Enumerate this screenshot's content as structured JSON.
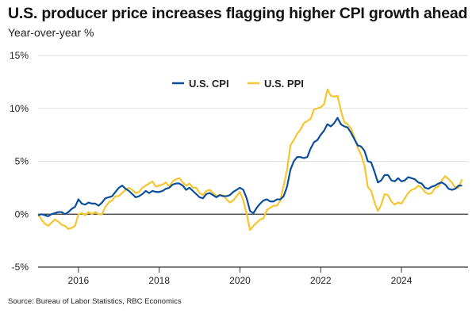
{
  "header": {
    "title": "U.S. producer price increases flagging higher CPI growth ahead",
    "subtitle": "Year-over-year %"
  },
  "footer": {
    "source": "Source: Bureau of Labor Statistics, RBC Economics"
  },
  "chart_data": {
    "type": "line",
    "title": "U.S. producer price increases flagging higher CPI growth ahead",
    "subtitle": "Year-over-year %",
    "xlabel": "",
    "ylabel": "Year-over-year %",
    "x_start": "2015-01",
    "x_frequency": "monthly",
    "xlim": [
      2015.0,
      2025.65
    ],
    "ylim": [
      -5,
      15
    ],
    "y_ticks": [
      -5,
      0,
      5,
      10,
      15
    ],
    "y_tick_labels": [
      "-5%",
      "0%",
      "5%",
      "10%",
      "15%"
    ],
    "x_ticks": [
      2016,
      2018,
      2020,
      2022,
      2024
    ],
    "x_tick_labels": [
      "2016",
      "2018",
      "2020",
      "2022",
      "2024"
    ],
    "grid": true,
    "legend_position": "top-center",
    "colors": {
      "cpi": "#0b4f9c",
      "ppi": "#f7c531",
      "grid": "#e2e2e2",
      "zero": "#333333"
    },
    "series": [
      {
        "name": "U.S. CPI",
        "key": "cpi",
        "values": [
          -0.1,
          0.0,
          -0.1,
          -0.2,
          0.0,
          0.1,
          0.2,
          0.2,
          0.0,
          0.2,
          0.5,
          0.7,
          1.4,
          1.0,
          0.9,
          1.1,
          1.0,
          1.0,
          0.8,
          1.1,
          1.5,
          1.6,
          1.7,
          2.1,
          2.5,
          2.7,
          2.4,
          2.2,
          1.9,
          1.6,
          1.7,
          1.9,
          2.2,
          2.0,
          2.2,
          2.1,
          2.1,
          2.2,
          2.4,
          2.5,
          2.8,
          2.9,
          2.9,
          2.7,
          2.3,
          2.5,
          2.2,
          1.9,
          1.6,
          1.5,
          1.9,
          2.0,
          1.8,
          1.6,
          1.8,
          1.7,
          1.7,
          1.8,
          2.1,
          2.3,
          2.5,
          2.3,
          1.5,
          0.3,
          0.1,
          0.6,
          1.0,
          1.3,
          1.4,
          1.2,
          1.2,
          1.4,
          1.4,
          1.7,
          2.6,
          4.2,
          5.0,
          5.4,
          5.4,
          5.3,
          5.4,
          6.2,
          6.8,
          7.0,
          7.5,
          7.9,
          8.5,
          8.3,
          8.6,
          9.1,
          8.5,
          8.3,
          8.2,
          7.7,
          7.1,
          6.5,
          6.4,
          6.0,
          5.0,
          4.9,
          4.0,
          3.0,
          3.2,
          3.7,
          3.7,
          3.2,
          3.1,
          3.4,
          3.1,
          3.2,
          3.5,
          3.4,
          3.3,
          3.0,
          2.9,
          2.5,
          2.4,
          2.6,
          2.7,
          2.9,
          3.0,
          2.8,
          2.4,
          2.3,
          2.4,
          2.7,
          2.7
        ]
      },
      {
        "name": "U.S. PPI",
        "key": "ppi",
        "values": [
          0.0,
          -0.5,
          -0.9,
          -1.1,
          -0.8,
          -0.5,
          -0.7,
          -1.0,
          -1.1,
          -1.4,
          -1.3,
          -1.1,
          0.0,
          0.1,
          -0.1,
          0.2,
          0.0,
          0.2,
          0.0,
          0.0,
          0.7,
          1.1,
          1.3,
          1.7,
          1.7,
          2.0,
          2.3,
          2.5,
          2.3,
          2.0,
          2.1,
          2.5,
          2.7,
          2.9,
          3.1,
          2.6,
          2.7,
          2.8,
          3.0,
          2.6,
          3.1,
          3.3,
          3.4,
          3.0,
          2.7,
          2.9,
          2.5,
          2.5,
          2.0,
          1.8,
          2.2,
          2.3,
          2.0,
          1.7,
          1.8,
          1.8,
          1.4,
          1.1,
          1.3,
          1.7,
          2.1,
          1.3,
          0.0,
          -1.5,
          -1.1,
          -0.8,
          -0.5,
          -0.4,
          0.4,
          0.6,
          0.8,
          0.8,
          1.3,
          2.7,
          4.2,
          6.5,
          7.0,
          7.6,
          8.0,
          8.6,
          8.8,
          9.0,
          9.9,
          10.0,
          10.1,
          10.4,
          11.8,
          11.2,
          11.1,
          11.2,
          9.8,
          8.7,
          8.5,
          8.1,
          7.3,
          6.3,
          5.6,
          4.6,
          2.6,
          2.2,
          1.1,
          0.3,
          0.9,
          1.9,
          1.8,
          1.2,
          0.9,
          1.1,
          1.0,
          1.5,
          2.0,
          2.3,
          2.4,
          2.7,
          2.5,
          2.1,
          1.9,
          2.0,
          2.5,
          2.6,
          3.2,
          3.6,
          3.3,
          3.0,
          2.5,
          2.5,
          3.3
        ]
      }
    ]
  }
}
